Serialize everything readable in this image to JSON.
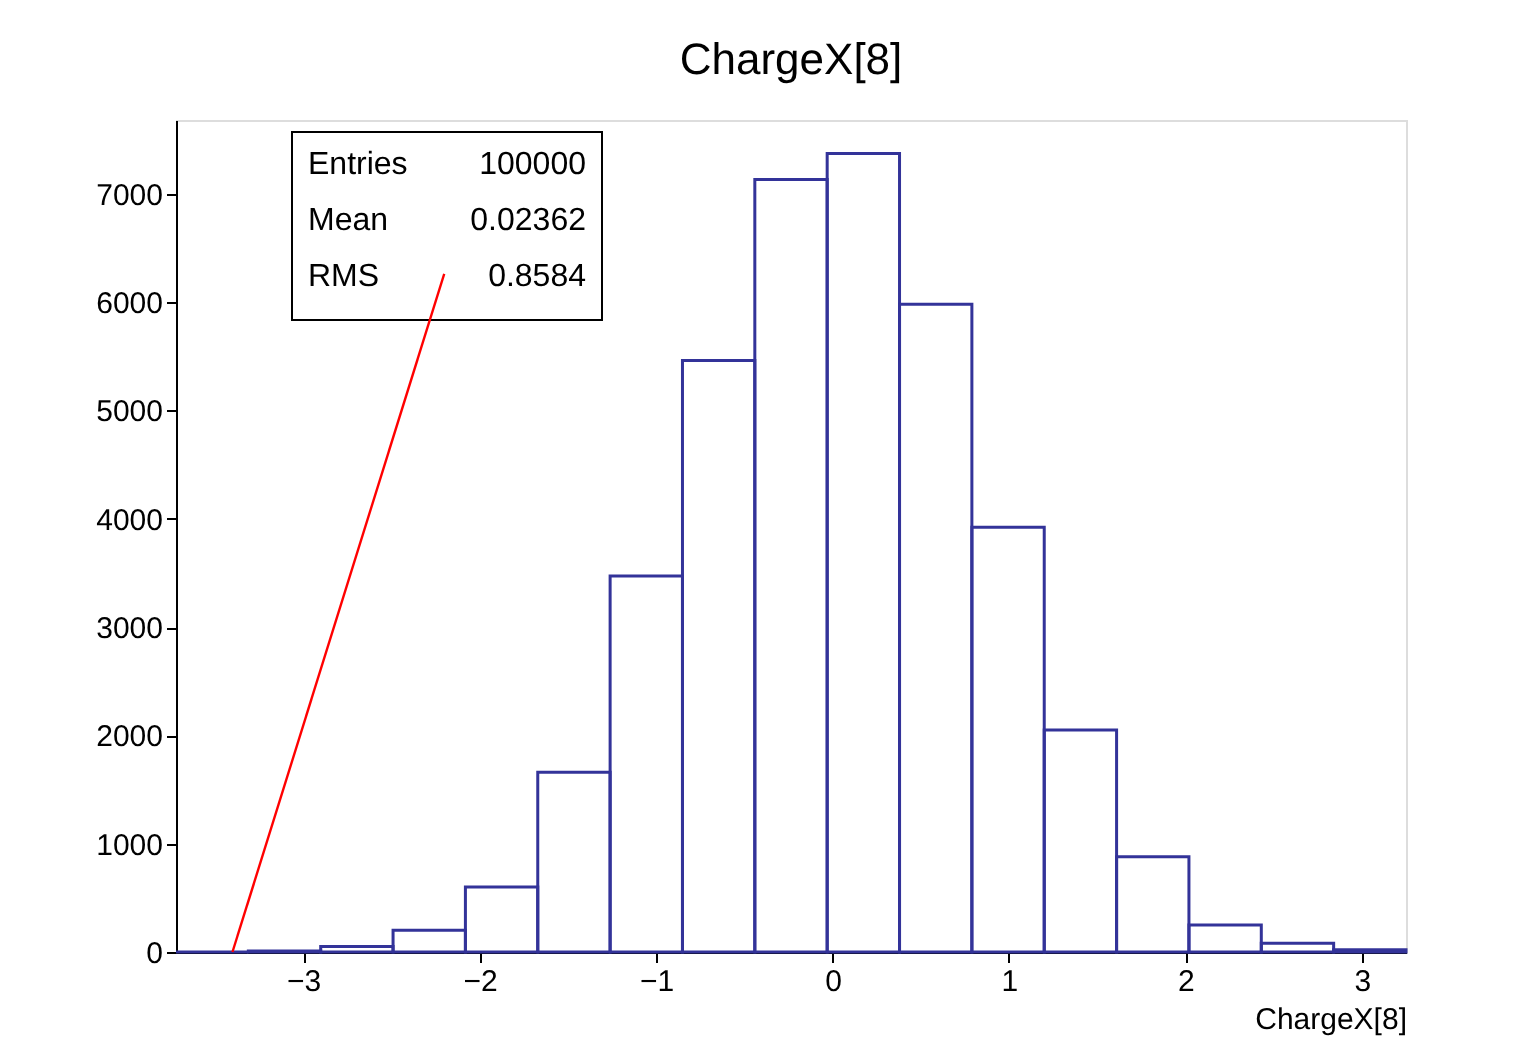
{
  "chart_data": {
    "type": "histogram",
    "title": "ChargeX[8]",
    "xlabel": "ChargeX[8]",
    "bins": [
      -3.72,
      -3.31,
      -2.9,
      -2.49,
      -2.08,
      -1.67,
      -1.26,
      -0.85,
      -0.44,
      -0.03,
      0.38,
      0.79,
      1.2,
      1.61,
      2.02,
      2.43,
      2.84,
      3.25
    ],
    "values": [
      0,
      10,
      50,
      200,
      600,
      1660,
      3470,
      5460,
      7130,
      7370,
      5980,
      3920,
      2050,
      880,
      250,
      80,
      20
    ],
    "color": "#333399",
    "series": [
      {
        "type": "line",
        "color": "#ff0000",
        "x": [
          -3.4,
          -2.2
        ],
        "values": [
          0,
          6260
        ]
      }
    ],
    "xlim": [
      -3.72,
      3.25
    ],
    "xticks": [
      -3,
      -2,
      -1,
      0,
      1,
      2,
      3
    ],
    "ylim": [
      0,
      7680
    ],
    "yticks": [
      0,
      1000,
      2000,
      3000,
      4000,
      5000,
      6000,
      7000
    ],
    "grid": false,
    "annotations": [
      "Entries",
      "100000",
      "Mean",
      "0.02362",
      "RMS",
      "0.8584"
    ]
  }
}
